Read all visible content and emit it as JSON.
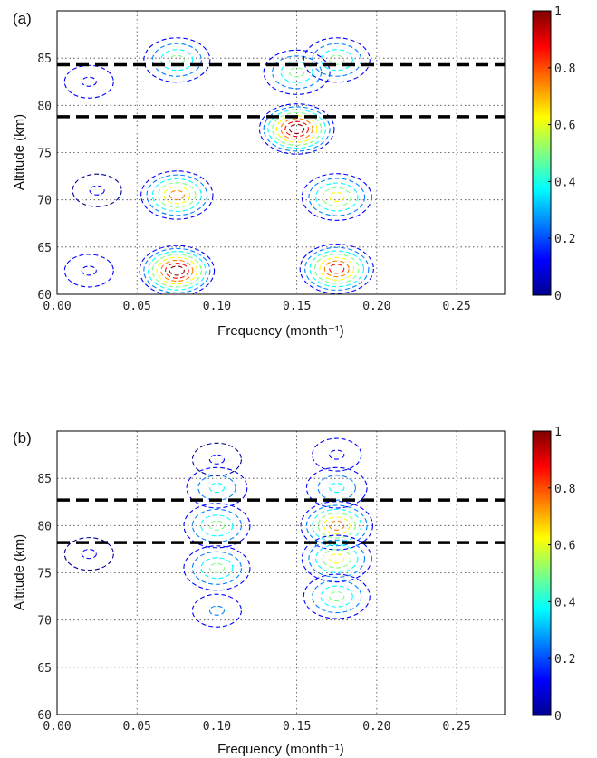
{
  "colors": {
    "colormap": [
      "#00008f",
      "#0000ff",
      "#0080ff",
      "#00ffff",
      "#80ff80",
      "#ffff00",
      "#ff8000",
      "#ff0000",
      "#800000"
    ],
    "boundary_lines": "#000000",
    "grid": "#444444"
  },
  "chart_data": [
    {
      "type": "heatmap",
      "panel_label": "(a)",
      "xlabel": "Frequency (month⁻¹)",
      "ylabel": "Altitude (km)",
      "xlim": [
        0.0,
        0.28
      ],
      "ylim": [
        60,
        90
      ],
      "xticks": [
        "0.00",
        "0.05",
        "0.10",
        "0.15",
        "0.20",
        "0.25"
      ],
      "yticks": [
        "60",
        "65",
        "70",
        "75",
        "80",
        "85"
      ],
      "grid": true,
      "style": "dashed contour lines",
      "colorbar": {
        "range": [
          0,
          1
        ],
        "ticks": [
          "0",
          "0.2",
          "0.4",
          "0.6",
          "0.8",
          "1"
        ]
      },
      "horizontal_lines_km": [
        84.3,
        78.8
      ],
      "peaks": [
        {
          "freq": 0.075,
          "alt": 62.5,
          "value": 0.95
        },
        {
          "freq": 0.175,
          "alt": 62.7,
          "value": 0.9
        },
        {
          "freq": 0.075,
          "alt": 70.5,
          "value": 0.7
        },
        {
          "freq": 0.175,
          "alt": 70.3,
          "value": 0.65
        },
        {
          "freq": 0.15,
          "alt": 77.5,
          "value": 1.0
        },
        {
          "freq": 0.15,
          "alt": 83.5,
          "value": 0.55
        },
        {
          "freq": 0.075,
          "alt": 84.8,
          "value": 0.5
        },
        {
          "freq": 0.175,
          "alt": 84.8,
          "value": 0.55
        },
        {
          "freq": 0.02,
          "alt": 82.5,
          "value": 0.15
        },
        {
          "freq": 0.02,
          "alt": 62.5,
          "value": 0.15
        },
        {
          "freq": 0.025,
          "alt": 71.0,
          "value": 0.12
        }
      ]
    },
    {
      "type": "heatmap",
      "panel_label": "(b)",
      "xlabel": "Frequency (month⁻¹)",
      "ylabel": "Altitude (km)",
      "xlim": [
        0.0,
        0.28
      ],
      "ylim": [
        60,
        90
      ],
      "xticks": [
        "0.00",
        "0.05",
        "0.10",
        "0.15",
        "0.20",
        "0.25"
      ],
      "yticks": [
        "60",
        "65",
        "70",
        "75",
        "80",
        "85"
      ],
      "grid": true,
      "style": "dashed contour lines",
      "colorbar": {
        "range": [
          0,
          1
        ],
        "ticks": [
          "0",
          "0.2",
          "0.4",
          "0.6",
          "0.8",
          "1"
        ]
      },
      "horizontal_lines_km": [
        82.7,
        78.2
      ],
      "peaks": [
        {
          "freq": 0.1,
          "alt": 80.0,
          "value": 0.55
        },
        {
          "freq": 0.1,
          "alt": 75.5,
          "value": 0.45
        },
        {
          "freq": 0.1,
          "alt": 71.0,
          "value": 0.3
        },
        {
          "freq": 0.175,
          "alt": 80.0,
          "value": 0.7
        },
        {
          "freq": 0.175,
          "alt": 76.5,
          "value": 0.6
        },
        {
          "freq": 0.175,
          "alt": 72.5,
          "value": 0.45
        },
        {
          "freq": 0.1,
          "alt": 84.0,
          "value": 0.35
        },
        {
          "freq": 0.175,
          "alt": 84.0,
          "value": 0.35
        },
        {
          "freq": 0.1,
          "alt": 87.0,
          "value": 0.12
        },
        {
          "freq": 0.175,
          "alt": 87.5,
          "value": 0.15
        },
        {
          "freq": 0.02,
          "alt": 77.0,
          "value": 0.12
        }
      ]
    }
  ]
}
